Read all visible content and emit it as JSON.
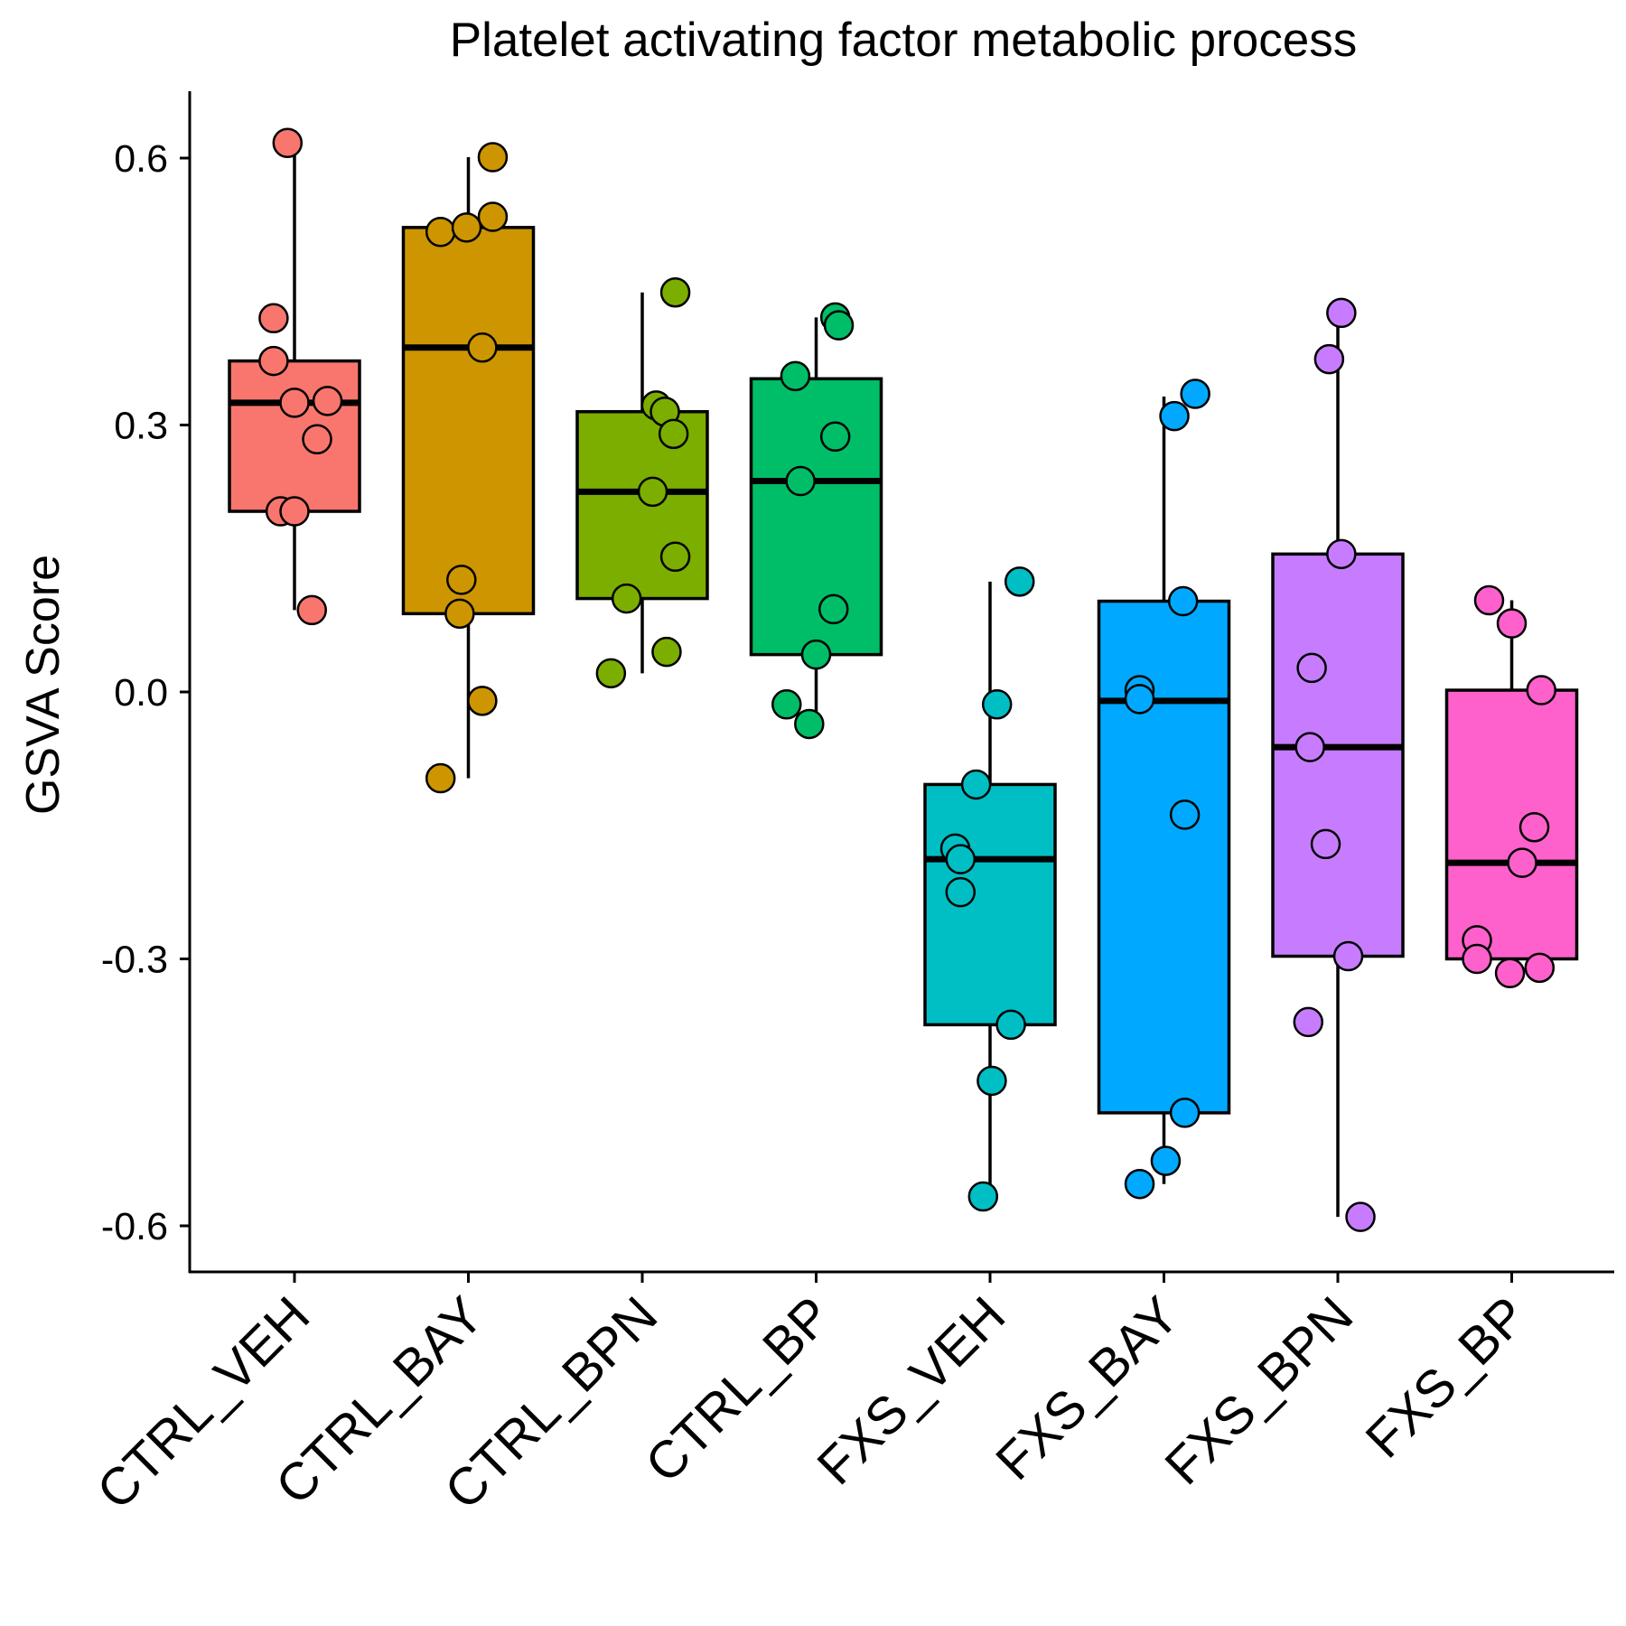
{
  "chart_data": {
    "type": "box",
    "title": "Platelet activating factor metabolic process",
    "xlabel": "",
    "ylabel": "GSVA Score",
    "ylim": [
      -0.67,
      0.675
    ],
    "yticks": [
      -0.6,
      -0.3,
      0.0,
      0.3,
      0.6
    ],
    "ytick_labels": [
      "-0.6",
      "-0.3",
      "0.0",
      "0.3",
      "0.6"
    ],
    "grid": false,
    "legend": "none",
    "categories": [
      "CTRL_VEH",
      "CTRL_BAY",
      "CTRL_BPN",
      "CTRL_BP",
      "FXS_VEH",
      "FXS_BAY",
      "FXS_BPN",
      "FXS_BP"
    ],
    "colors": [
      "#F8766D",
      "#CD9600",
      "#7CAE00",
      "#00BE67",
      "#00BFC4",
      "#00A9FF",
      "#C77CFF",
      "#FF61CC"
    ],
    "boxes": [
      {
        "group": "CTRL_VEH",
        "whisker_low": 0.092,
        "q1": 0.203,
        "median": 0.325,
        "q3": 0.372,
        "whisker_high": 0.617
      },
      {
        "group": "CTRL_BAY",
        "whisker_low": -0.097,
        "q1": 0.088,
        "median": 0.387,
        "q3": 0.522,
        "whisker_high": 0.601
      },
      {
        "group": "CTRL_BPN",
        "whisker_low": 0.021,
        "q1": 0.105,
        "median": 0.225,
        "q3": 0.315,
        "whisker_high": 0.449
      },
      {
        "group": "CTRL_BP",
        "whisker_low": -0.036,
        "q1": 0.042,
        "median": 0.237,
        "q3": 0.352,
        "whisker_high": 0.421
      },
      {
        "group": "FXS_VEH",
        "whisker_low": -0.567,
        "q1": -0.374,
        "median": -0.188,
        "q3": -0.104,
        "whisker_high": 0.124
      },
      {
        "group": "FXS_BAY",
        "whisker_low": -0.553,
        "q1": -0.473,
        "median": -0.01,
        "q3": 0.102,
        "whisker_high": 0.332
      },
      {
        "group": "FXS_BPN",
        "whisker_low": -0.59,
        "q1": -0.297,
        "median": -0.062,
        "q3": 0.155,
        "whisker_high": 0.426
      },
      {
        "group": "FXS_BP",
        "whisker_low": -0.316,
        "q1": -0.3,
        "median": -0.192,
        "q3": 0.002,
        "whisker_high": 0.103
      }
    ],
    "points": [
      [
        {
          "x": -0.04,
          "y": 0.617
        },
        {
          "x": -0.12,
          "y": 0.42
        },
        {
          "x": -0.12,
          "y": 0.372
        },
        {
          "x": 0.0,
          "y": 0.325
        },
        {
          "x": 0.19,
          "y": 0.327
        },
        {
          "x": 0.13,
          "y": 0.284
        },
        {
          "x": -0.08,
          "y": 0.203
        },
        {
          "x": 0.0,
          "y": 0.203
        },
        {
          "x": 0.1,
          "y": 0.092
        }
      ],
      [
        {
          "x": 0.14,
          "y": 0.601
        },
        {
          "x": 0.14,
          "y": 0.534
        },
        {
          "x": -0.16,
          "y": 0.517
        },
        {
          "x": -0.01,
          "y": 0.522
        },
        {
          "x": 0.08,
          "y": 0.387
        },
        {
          "x": -0.04,
          "y": 0.126
        },
        {
          "x": -0.05,
          "y": 0.088
        },
        {
          "x": 0.08,
          "y": -0.01
        },
        {
          "x": -0.16,
          "y": -0.097
        }
      ],
      [
        {
          "x": 0.19,
          "y": 0.449
        },
        {
          "x": 0.08,
          "y": 0.322
        },
        {
          "x": 0.13,
          "y": 0.315
        },
        {
          "x": 0.18,
          "y": 0.29
        },
        {
          "x": 0.06,
          "y": 0.225
        },
        {
          "x": 0.19,
          "y": 0.152
        },
        {
          "x": -0.09,
          "y": 0.105
        },
        {
          "x": 0.14,
          "y": 0.045
        },
        {
          "x": -0.18,
          "y": 0.021
        }
      ],
      [
        {
          "x": 0.11,
          "y": 0.421
        },
        {
          "x": 0.13,
          "y": 0.412
        },
        {
          "x": -0.12,
          "y": 0.355
        },
        {
          "x": 0.11,
          "y": 0.287
        },
        {
          "x": -0.09,
          "y": 0.237
        },
        {
          "x": 0.1,
          "y": 0.093
        },
        {
          "x": 0.0,
          "y": 0.042
        },
        {
          "x": -0.17,
          "y": -0.014
        },
        {
          "x": -0.04,
          "y": -0.036
        }
      ],
      [
        {
          "x": 0.17,
          "y": 0.124
        },
        {
          "x": 0.04,
          "y": -0.014
        },
        {
          "x": -0.08,
          "y": -0.104
        },
        {
          "x": -0.2,
          "y": -0.176
        },
        {
          "x": -0.17,
          "y": -0.188
        },
        {
          "x": -0.17,
          "y": -0.225
        },
        {
          "x": 0.12,
          "y": -0.374
        },
        {
          "x": 0.01,
          "y": -0.437
        },
        {
          "x": -0.04,
          "y": -0.567
        }
      ],
      [
        {
          "x": 0.18,
          "y": 0.335
        },
        {
          "x": 0.06,
          "y": 0.31
        },
        {
          "x": 0.11,
          "y": 0.102
        },
        {
          "x": -0.14,
          "y": 0.002
        },
        {
          "x": -0.14,
          "y": -0.008
        },
        {
          "x": 0.12,
          "y": -0.138
        },
        {
          "x": 0.12,
          "y": -0.473
        },
        {
          "x": 0.01,
          "y": -0.527
        },
        {
          "x": -0.14,
          "y": -0.553
        }
      ],
      [
        {
          "x": 0.02,
          "y": 0.426
        },
        {
          "x": -0.05,
          "y": 0.374
        },
        {
          "x": 0.02,
          "y": 0.155
        },
        {
          "x": -0.15,
          "y": 0.027
        },
        {
          "x": -0.16,
          "y": -0.062
        },
        {
          "x": -0.07,
          "y": -0.171
        },
        {
          "x": 0.06,
          "y": -0.297
        },
        {
          "x": -0.17,
          "y": -0.371
        },
        {
          "x": 0.13,
          "y": -0.59
        }
      ],
      [
        {
          "x": -0.13,
          "y": 0.103
        },
        {
          "x": 0.0,
          "y": 0.077
        },
        {
          "x": 0.17,
          "y": 0.002
        },
        {
          "x": 0.13,
          "y": -0.152
        },
        {
          "x": 0.06,
          "y": -0.192
        },
        {
          "x": -0.2,
          "y": -0.279
        },
        {
          "x": -0.2,
          "y": -0.3
        },
        {
          "x": 0.16,
          "y": -0.31
        },
        {
          "x": -0.01,
          "y": -0.316
        }
      ]
    ]
  }
}
